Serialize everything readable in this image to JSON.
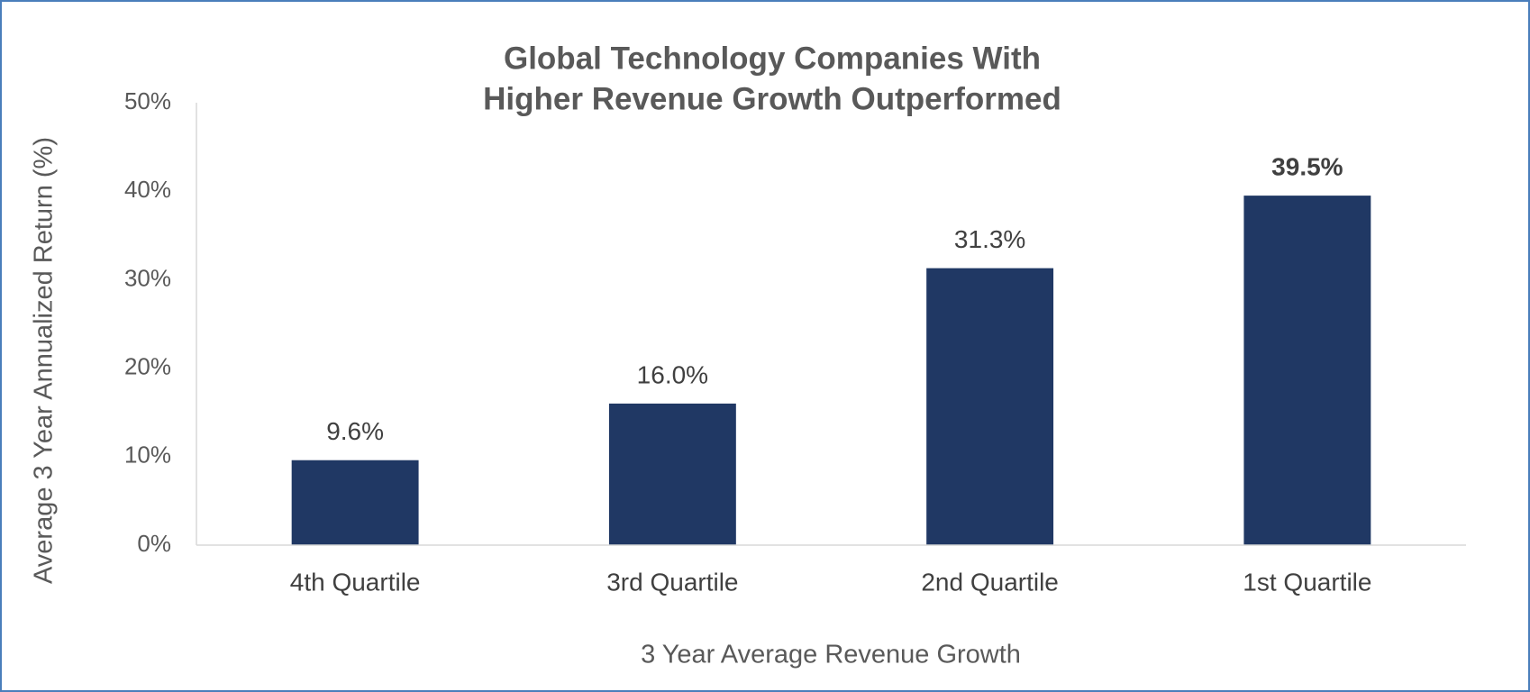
{
  "chart_data": {
    "type": "bar",
    "title": [
      "Global Technology Companies With",
      "Higher Revenue Growth Outperformed"
    ],
    "x_label": "3 Year Average Revenue Growth",
    "y_label": "Average 3 Year Annualized Return (%)",
    "categories": [
      "4th Quartile",
      "3rd Quartile",
      "2nd Quartile",
      "1st Quartile"
    ],
    "values": [
      9.6,
      16.0,
      31.3,
      39.5
    ],
    "value_labels": [
      "9.6%",
      "16.0%",
      "31.3%",
      "39.5%"
    ],
    "value_label_bold": [
      false,
      false,
      false,
      true
    ],
    "color": "#203864",
    "ylim": [
      0,
      50
    ],
    "yticks": [
      {
        "value": 0,
        "label": "0%"
      },
      {
        "value": 10,
        "label": "10%"
      },
      {
        "value": 20,
        "label": "20%"
      },
      {
        "value": 30,
        "label": "30%"
      },
      {
        "value": 40,
        "label": "40%"
      },
      {
        "value": 50,
        "label": "50%"
      }
    ],
    "grid": false
  }
}
